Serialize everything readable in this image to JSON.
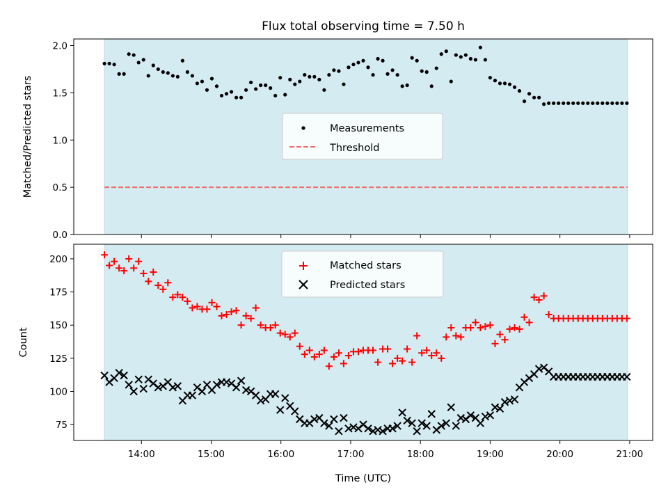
{
  "chart_data": {
    "type": "scatter",
    "title": "Flux total observing time = 7.50 h",
    "xlabel": "Time (UTC)",
    "x_units": "hours UTC",
    "x_ticks": [
      {
        "value": 14,
        "label": "14:00"
      },
      {
        "value": 15,
        "label": "15:00"
      },
      {
        "value": 16,
        "label": "16:00"
      },
      {
        "value": 17,
        "label": "17:00"
      },
      {
        "value": 18,
        "label": "18:00"
      },
      {
        "value": 19,
        "label": "19:00"
      },
      {
        "value": 20,
        "label": "20:00"
      },
      {
        "value": 21,
        "label": "21:00"
      }
    ],
    "xlim": [
      13.03,
      21.33
    ],
    "observing_window": [
      13.47,
      20.97
    ],
    "colors": {
      "window": "#d4ebf1",
      "window_edge": "#bcd9e3",
      "measurement": "#000000",
      "threshold": "#ee6b6b",
      "matched": "#ff0000",
      "predicted": "#000000"
    },
    "panels": [
      {
        "name": "ratio",
        "ylabel": "Matched/Predicted stars",
        "ylim": [
          0,
          2.07
        ],
        "y_ticks": [
          {
            "value": 0,
            "label": "0.0"
          },
          {
            "value": 0.5,
            "label": "0.5"
          },
          {
            "value": 1.0,
            "label": "1.0"
          },
          {
            "value": 1.5,
            "label": "1.5"
          },
          {
            "value": 2.0,
            "label": "2.0"
          }
        ],
        "legend_position": "center",
        "threshold": 0.5,
        "legend": {
          "measurements": "Measurements",
          "threshold": "Threshold"
        }
      },
      {
        "name": "counts",
        "ylabel": "Count",
        "ylim": [
          63,
          211
        ],
        "y_ticks": [
          {
            "value": 75,
            "label": "75"
          },
          {
            "value": 100,
            "label": "100"
          },
          {
            "value": 125,
            "label": "125"
          },
          {
            "value": 150,
            "label": "150"
          },
          {
            "value": 175,
            "label": "175"
          },
          {
            "value": 200,
            "label": "200"
          }
        ],
        "legend_position": "upper center",
        "legend": {
          "matched": "Matched stars",
          "predicted": "Predicted stars"
        }
      }
    ],
    "series": {
      "time": [
        13.47,
        13.54,
        13.61,
        13.68,
        13.75,
        13.82,
        13.89,
        13.96,
        14.03,
        14.1,
        14.17,
        14.24,
        14.31,
        14.38,
        14.45,
        14.52,
        14.59,
        14.66,
        14.73,
        14.8,
        14.87,
        14.94,
        15.01,
        15.08,
        15.15,
        15.22,
        15.29,
        15.36,
        15.43,
        15.5,
        15.57,
        15.64,
        15.71,
        15.78,
        15.85,
        15.92,
        15.99,
        16.06,
        16.13,
        16.2,
        16.27,
        16.34,
        16.41,
        16.48,
        16.55,
        16.62,
        16.69,
        16.76,
        16.83,
        16.9,
        16.97,
        17.04,
        17.11,
        17.18,
        17.25,
        17.32,
        17.39,
        17.46,
        17.53,
        17.6,
        17.67,
        17.74,
        17.81,
        17.88,
        17.95,
        18.02,
        18.09,
        18.16,
        18.23,
        18.3,
        18.37,
        18.44,
        18.51,
        18.58,
        18.65,
        18.72,
        18.79,
        18.86,
        18.93,
        19.0,
        19.07,
        19.14,
        19.21,
        19.28,
        19.35,
        19.42,
        19.49,
        19.56,
        19.63,
        19.7,
        19.77,
        19.84,
        19.91,
        19.98,
        20.05,
        20.12,
        20.19,
        20.26,
        20.33,
        20.4,
        20.47,
        20.54,
        20.61,
        20.68,
        20.75,
        20.82,
        20.89,
        20.96
      ],
      "matched": [
        203,
        195,
        198,
        193,
        191,
        200,
        193,
        198,
        189,
        183,
        190,
        180,
        177,
        182,
        171,
        173,
        171,
        168,
        163,
        164,
        162,
        162,
        167,
        164,
        157,
        158,
        160,
        161,
        150,
        157,
        155,
        163,
        150,
        148,
        148,
        150,
        144,
        143,
        141,
        144,
        134,
        128,
        131,
        126,
        128,
        131,
        119,
        126,
        129,
        121,
        127,
        130,
        130,
        131,
        131,
        131,
        122,
        132,
        132,
        121,
        125,
        123,
        132,
        122,
        142,
        129,
        131,
        127,
        129,
        125,
        141,
        148,
        142,
        141,
        148,
        148,
        152,
        148,
        149,
        150,
        136,
        143,
        139,
        147,
        148,
        147,
        156,
        152,
        171,
        169,
        172,
        158,
        155,
        155,
        155,
        155,
        155,
        155,
        155,
        155,
        155,
        155,
        155,
        155,
        155,
        155,
        155,
        155
      ],
      "predicted": [
        112,
        107,
        110,
        114,
        112,
        105,
        100,
        109,
        102,
        109,
        106,
        103,
        104,
        107,
        103,
        104,
        93,
        97,
        97,
        103,
        100,
        105,
        101,
        105,
        107,
        107,
        106,
        103,
        108,
        101,
        100,
        97,
        93,
        94,
        98,
        98,
        86,
        95,
        89,
        85,
        79,
        76,
        76,
        79,
        80,
        76,
        74,
        79,
        70,
        80,
        72,
        73,
        72,
        75,
        72,
        70,
        71,
        70,
        72,
        72,
        74,
        84,
        78,
        76,
        70,
        76,
        74,
        83,
        71,
        74,
        76,
        88,
        74,
        80,
        79,
        82,
        80,
        76,
        81,
        82,
        88,
        87,
        92,
        93,
        94,
        103,
        107,
        110,
        113,
        117,
        118,
        115,
        111,
        111,
        111,
        111,
        111,
        111,
        111,
        111,
        111,
        111,
        111,
        111,
        111,
        111,
        111,
        111
      ],
      "ratio": [
        1.81,
        1.81,
        1.8,
        1.7,
        1.7,
        1.91,
        1.9,
        1.82,
        1.85,
        1.68,
        1.79,
        1.75,
        1.72,
        1.71,
        1.68,
        1.67,
        1.84,
        1.72,
        1.68,
        1.6,
        1.62,
        1.53,
        1.65,
        1.57,
        1.47,
        1.49,
        1.51,
        1.45,
        1.45,
        1.53,
        1.61,
        1.54,
        1.58,
        1.58,
        1.55,
        1.47,
        1.66,
        1.48,
        1.64,
        1.59,
        1.62,
        1.69,
        1.67,
        1.67,
        1.64,
        1.53,
        1.69,
        1.74,
        1.73,
        1.59,
        1.77,
        1.8,
        1.82,
        1.84,
        1.77,
        1.69,
        1.86,
        1.84,
        1.7,
        1.74,
        1.69,
        1.57,
        1.58,
        1.87,
        1.84,
        1.73,
        1.72,
        1.57,
        1.76,
        1.91,
        1.94,
        1.62,
        1.9,
        1.88,
        1.9,
        1.86,
        1.85,
        1.98,
        1.85,
        1.66,
        1.63,
        1.6,
        1.6,
        1.59,
        1.56,
        1.52,
        1.41,
        1.49,
        1.45,
        1.45,
        1.38,
        1.39,
        1.39,
        1.39,
        1.39,
        1.39,
        1.39,
        1.39,
        1.39,
        1.39,
        1.39,
        1.39,
        1.39,
        1.39,
        1.39,
        1.39,
        1.39,
        1.39
      ]
    }
  }
}
